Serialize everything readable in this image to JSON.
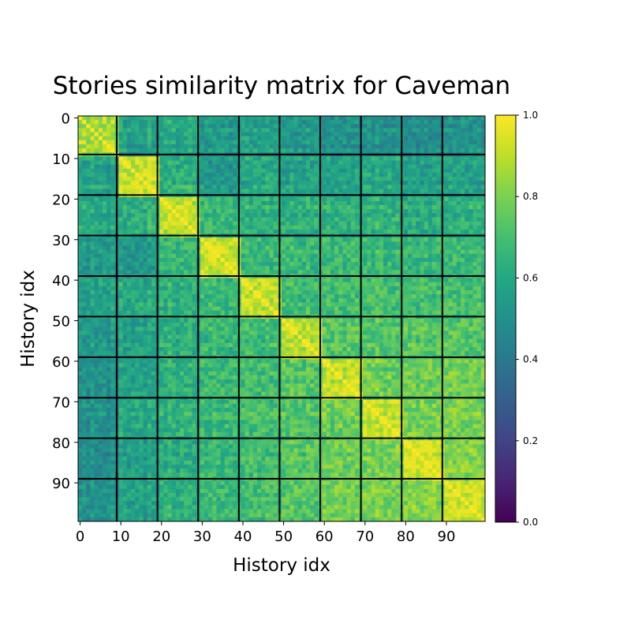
{
  "chart_data": {
    "type": "heatmap",
    "title": "Stories similarity matrix for Caveman",
    "xlabel": "History idx",
    "ylabel": "History idx",
    "size": 100,
    "block_size": 10,
    "x_ticks": [
      0,
      10,
      20,
      30,
      40,
      50,
      60,
      70,
      80,
      90
    ],
    "y_ticks": [
      0,
      10,
      20,
      30,
      40,
      50,
      60,
      70,
      80,
      90
    ],
    "x_tick_labels": [
      "0",
      "10",
      "20",
      "30",
      "40",
      "50",
      "60",
      "70",
      "80",
      "90"
    ],
    "y_tick_labels": [
      "0",
      "10",
      "20",
      "30",
      "40",
      "50",
      "60",
      "70",
      "80",
      "90"
    ],
    "colorbar": {
      "range": [
        0.0,
        1.0
      ],
      "ticks": [
        0.0,
        0.2,
        0.4,
        0.6,
        0.8,
        1.0
      ],
      "tick_labels": [
        "0.0",
        "0.2",
        "0.4",
        "0.6",
        "0.8",
        "1.0"
      ],
      "colormap": "viridis"
    },
    "diagonal_value": 1.0,
    "block_means": [
      [
        0.92,
        0.58,
        0.62,
        0.55,
        0.58,
        0.55,
        0.52,
        0.52,
        0.5,
        0.52
      ],
      [
        0.58,
        0.92,
        0.62,
        0.52,
        0.58,
        0.56,
        0.56,
        0.58,
        0.55,
        0.56
      ],
      [
        0.62,
        0.62,
        0.9,
        0.65,
        0.62,
        0.62,
        0.62,
        0.63,
        0.6,
        0.62
      ],
      [
        0.55,
        0.52,
        0.65,
        0.92,
        0.66,
        0.66,
        0.66,
        0.66,
        0.65,
        0.66
      ],
      [
        0.58,
        0.58,
        0.62,
        0.66,
        0.9,
        0.68,
        0.68,
        0.68,
        0.68,
        0.68
      ],
      [
        0.55,
        0.56,
        0.62,
        0.66,
        0.68,
        0.9,
        0.72,
        0.72,
        0.72,
        0.72
      ],
      [
        0.52,
        0.56,
        0.62,
        0.66,
        0.68,
        0.72,
        0.9,
        0.76,
        0.76,
        0.76
      ],
      [
        0.52,
        0.58,
        0.63,
        0.66,
        0.68,
        0.72,
        0.76,
        0.9,
        0.78,
        0.78
      ],
      [
        0.5,
        0.55,
        0.6,
        0.65,
        0.68,
        0.72,
        0.76,
        0.78,
        0.92,
        0.8
      ],
      [
        0.52,
        0.56,
        0.62,
        0.66,
        0.68,
        0.72,
        0.76,
        0.78,
        0.8,
        0.92
      ]
    ],
    "row_offsets": [
      0.02,
      0.0,
      -0.03,
      0.01,
      -0.02,
      0.03,
      0.0,
      -0.04,
      0.02,
      -0.08,
      0.03,
      -0.02,
      0.0,
      -0.05,
      0.02,
      0.01,
      -0.03,
      0.04,
      0.0,
      -0.02,
      0.01,
      -0.03,
      0.04,
      0.0,
      -0.02,
      0.02,
      -0.01,
      0.03,
      0.0,
      -0.05,
      0.02,
      -0.01,
      0.0,
      0.03,
      -0.02,
      0.01,
      0.0,
      -0.03,
      0.02,
      0.0,
      0.0,
      0.02,
      -0.03,
      0.01,
      0.0,
      -0.02,
      0.03,
      0.0,
      -0.01,
      0.02,
      0.0,
      -0.02,
      0.03,
      0.0,
      0.01,
      -0.03,
      0.02,
      0.0,
      -0.01,
      0.02,
      0.02,
      0.0,
      -0.02,
      0.03,
      0.0,
      -0.01,
      0.02,
      0.0,
      0.01,
      -0.02,
      0.0,
      0.02,
      -0.01,
      0.03,
      0.0,
      -0.02,
      0.01,
      0.0,
      0.02,
      -0.01,
      0.01,
      0.0,
      0.02,
      -0.02,
      0.0,
      0.03,
      0.0,
      -0.01,
      0.02,
      0.0,
      0.0,
      0.02,
      -0.01,
      0.0,
      0.02,
      -0.02,
      0.01,
      0.03,
      0.0,
      -0.01
    ],
    "col_offsets": [
      -0.05,
      -0.02,
      -0.04,
      -0.01,
      -0.03,
      -0.06,
      -0.02,
      -0.04,
      -0.01,
      -0.12,
      0.03,
      0.01,
      -0.02,
      0.04,
      0.0,
      0.02,
      -0.01,
      0.03,
      0.01,
      -0.03,
      0.01,
      0.02,
      0.03,
      0.0,
      -0.02,
      0.01,
      0.02,
      0.0,
      -0.01,
      -0.08,
      0.0,
      0.02,
      0.01,
      -0.01,
      0.03,
      0.0,
      0.01,
      0.02,
      -0.02,
      -0.04,
      0.0,
      0.01,
      0.02,
      0.0,
      -0.01,
      0.02,
      0.01,
      0.0,
      0.02,
      -0.03,
      0.01,
      0.0,
      0.02,
      0.01,
      -0.01,
      0.0,
      0.02,
      0.01,
      0.0,
      -0.03,
      0.0,
      0.02,
      0.01,
      0.0,
      0.02,
      0.01,
      0.0,
      0.02,
      0.01,
      -0.03,
      0.01,
      0.0,
      0.02,
      0.03,
      0.01,
      0.0,
      0.02,
      0.01,
      0.0,
      -0.02,
      0.0,
      0.02,
      0.01,
      0.0,
      0.02,
      0.0,
      0.01,
      0.02,
      0.01,
      0.0,
      0.01,
      0.0,
      0.02,
      0.01,
      0.0,
      0.02,
      0.01,
      0.0,
      0.02,
      0.01
    ],
    "noise_amplitude": 0.09
  }
}
